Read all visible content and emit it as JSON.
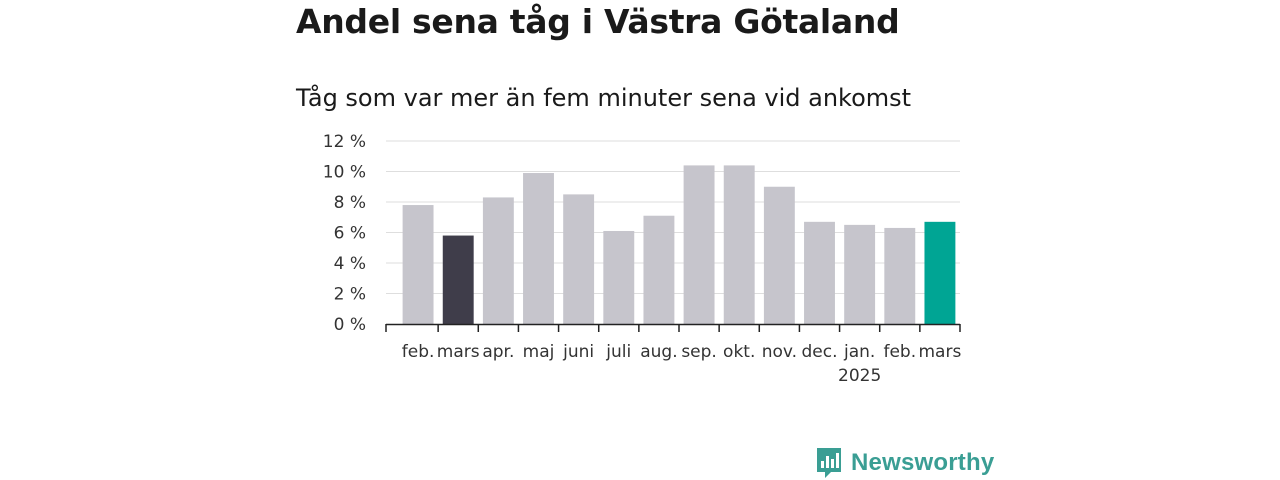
{
  "title": "Andel sena tåg i Västra Götaland",
  "subtitle": "Tåg som var mer än fem minuter sena vid ankomst",
  "brand": {
    "name": "Newsworthy",
    "icon": "newsworthy-logo-icon",
    "color": "#3a9e94"
  },
  "chart_data": {
    "type": "bar",
    "categories": [
      "feb.",
      "mars",
      "apr.",
      "maj",
      "juni",
      "juli",
      "aug.",
      "sep.",
      "okt.",
      "nov.",
      "dec.",
      "jan.",
      "feb.",
      "mars"
    ],
    "year_labels": [
      {
        "category_index": 11,
        "text": "2025"
      }
    ],
    "values": [
      7.8,
      5.8,
      8.3,
      9.9,
      8.5,
      6.1,
      7.1,
      10.4,
      10.4,
      9.0,
      6.7,
      6.5,
      6.3,
      6.7
    ],
    "bar_colors": [
      "#c6c5cc",
      "#3f3d4a",
      "#c6c5cc",
      "#c6c5cc",
      "#c6c5cc",
      "#c6c5cc",
      "#c6c5cc",
      "#c6c5cc",
      "#c6c5cc",
      "#c6c5cc",
      "#c6c5cc",
      "#c6c5cc",
      "#c6c5cc",
      "#00a594"
    ],
    "y_ticks": [
      "0 %",
      "2 %",
      "4 %",
      "6 %",
      "8 %",
      "10 %",
      "12 %"
    ],
    "ylim": [
      0,
      12
    ],
    "grid": true,
    "xlabel": "",
    "ylabel": ""
  }
}
